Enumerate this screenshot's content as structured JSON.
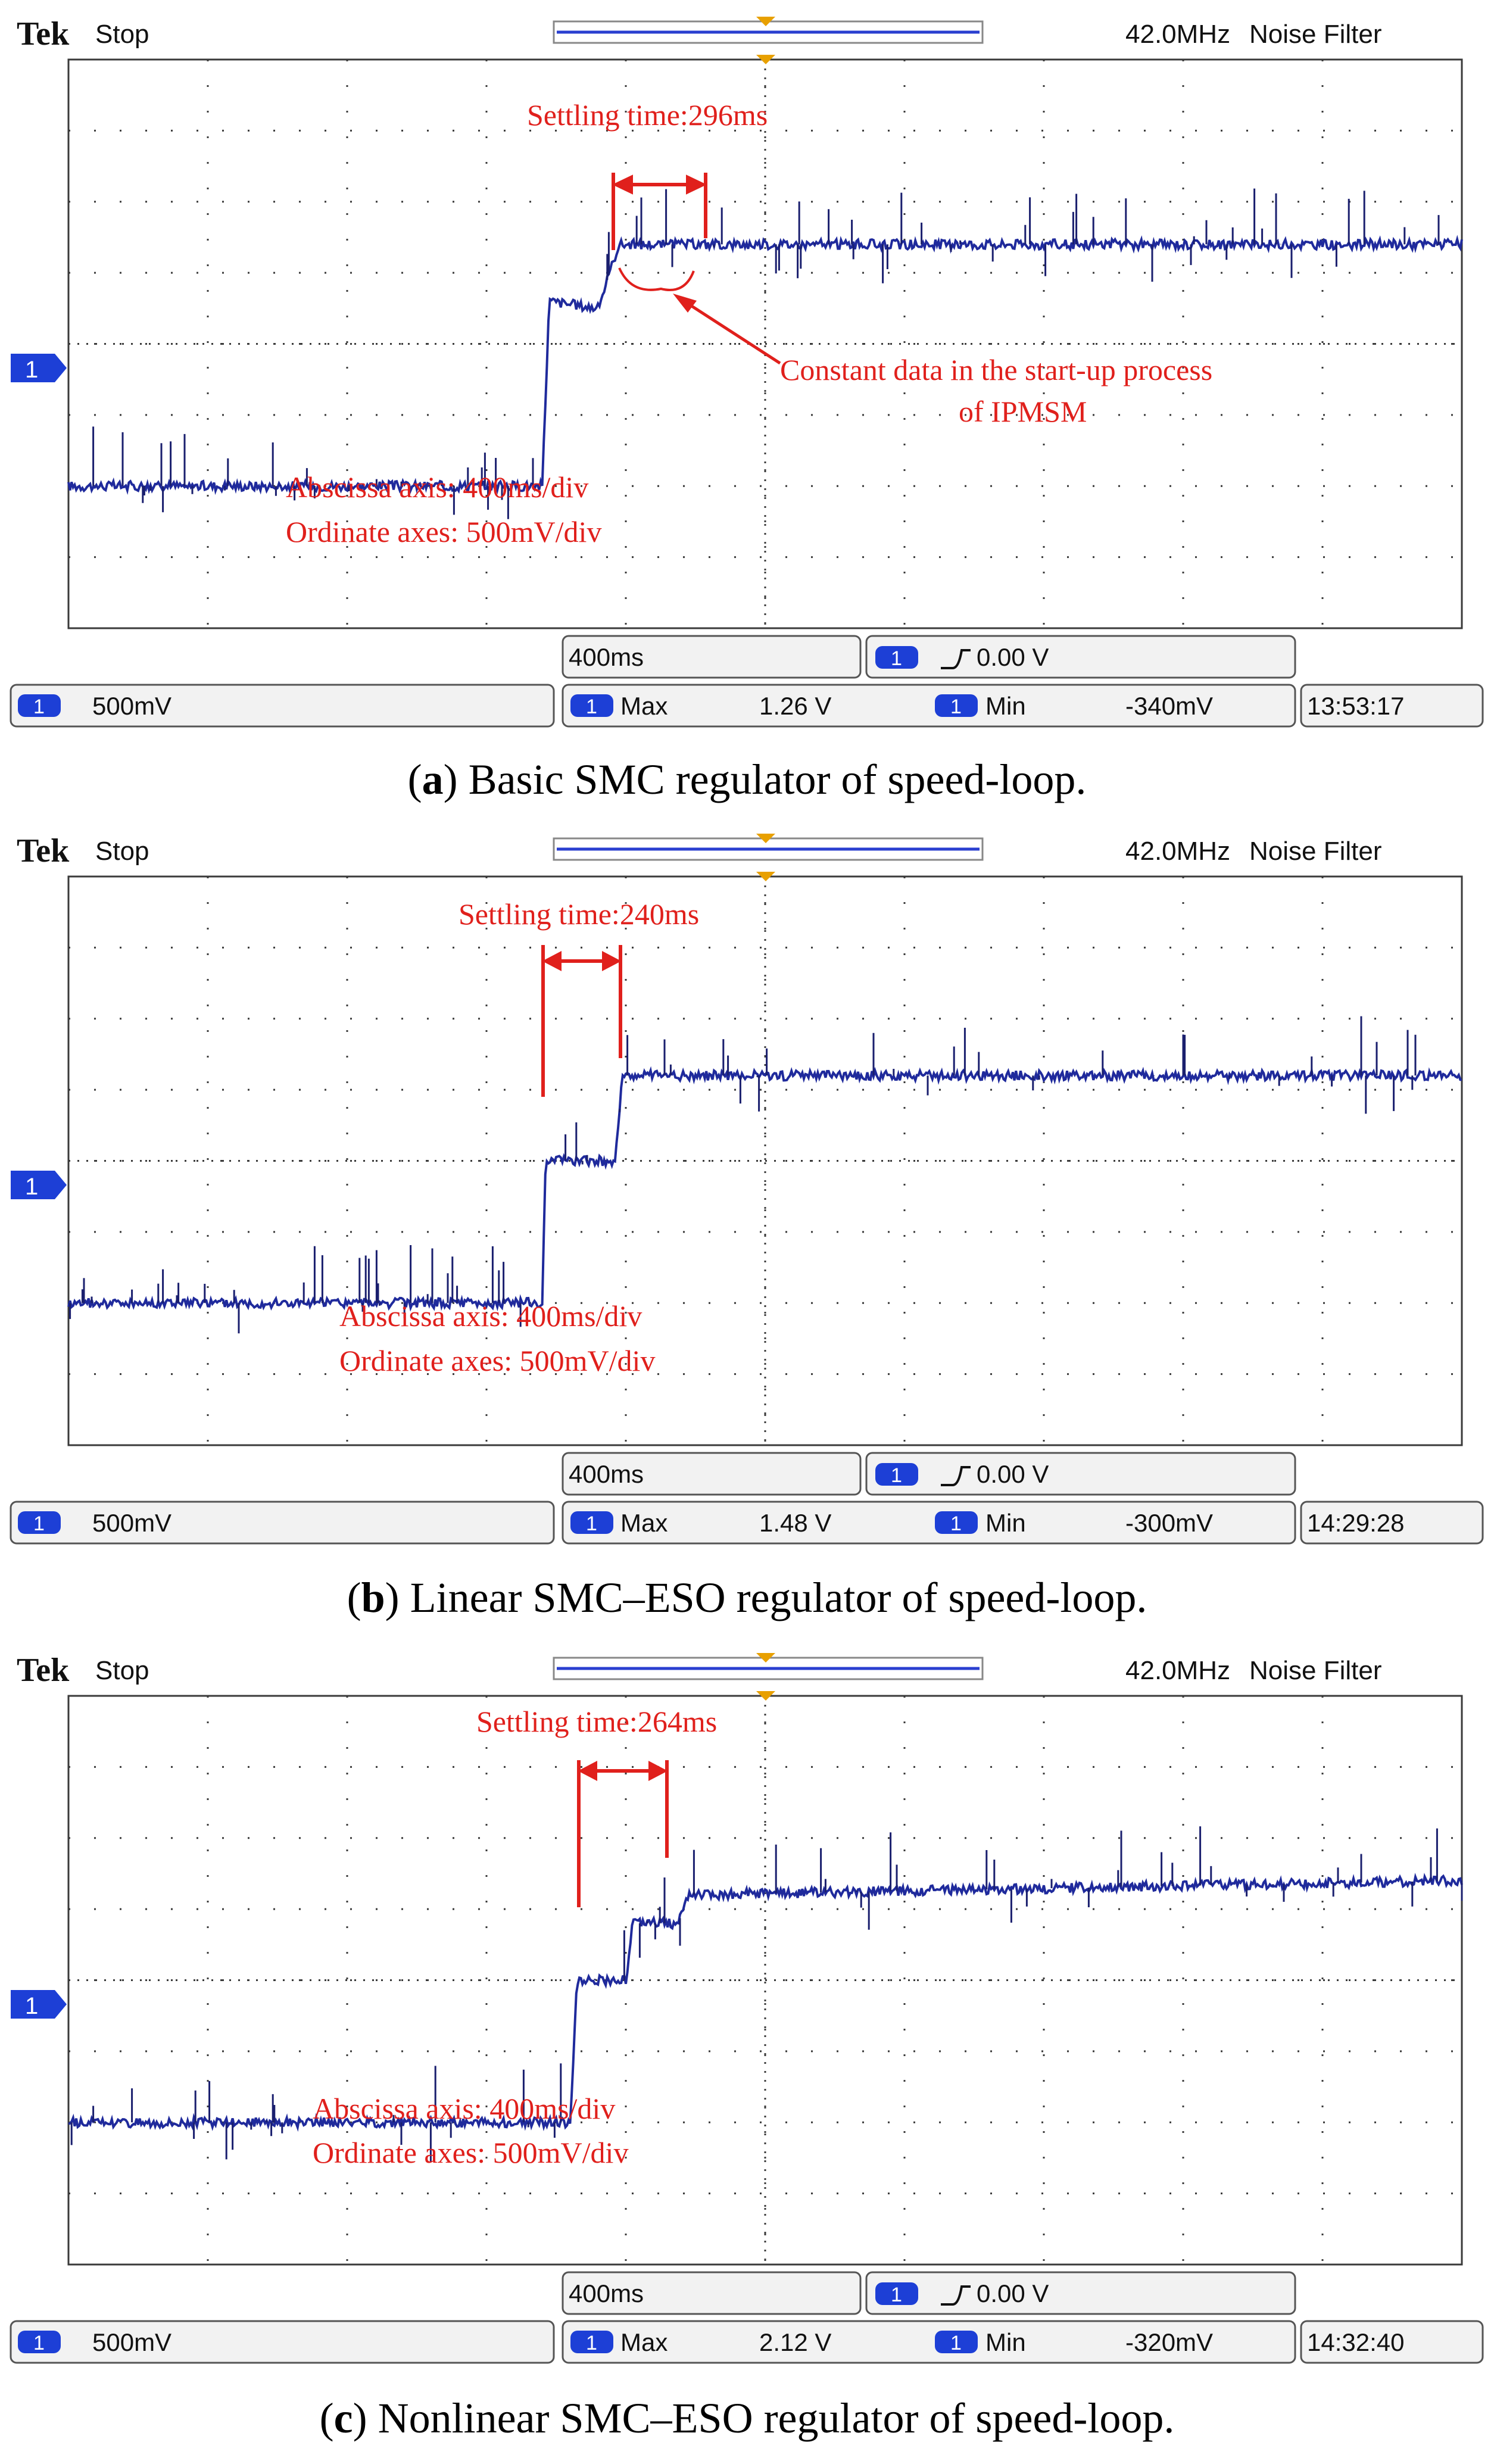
{
  "colors": {
    "trace": "#1f2a9c",
    "annotation": "#e0201c",
    "marker": "#e8a000",
    "badge": "#1d3fd6",
    "grid": "#3a3a3a",
    "text": "#111111"
  },
  "panels": [
    {
      "brand": "Tek",
      "status": "Stop",
      "freq": "42.0MHz",
      "filter": "Noise Filter",
      "channel": "1",
      "timebase": "400ms",
      "trigger": "0.00 V",
      "scale": "500mV",
      "max_label": "Max",
      "max_value": "1.26 V",
      "min_label": "Min",
      "min_value": "-340mV",
      "clock": "13:53:17",
      "settling_label": "Settling time:296ms",
      "axis_note_1": "Abscissa axis: 400ms/div",
      "axis_note_2": "Ordinate axes: 500mV/div",
      "extra_note_1": "Constant data in the start-up process",
      "extra_note_2": "of IPMSM",
      "caption_letter": "a",
      "caption_text": "Basic SMC regulator of speed-loop."
    },
    {
      "brand": "Tek",
      "status": "Stop",
      "freq": "42.0MHz",
      "filter": "Noise Filter",
      "channel": "1",
      "timebase": "400ms",
      "trigger": "0.00 V",
      "scale": "500mV",
      "max_label": "Max",
      "max_value": "1.48 V",
      "min_label": "Min",
      "min_value": "-300mV",
      "clock": "14:29:28",
      "settling_label": "Settling time:240ms",
      "axis_note_1": "Abscissa axis: 400ms/div",
      "axis_note_2": "Ordinate axes: 500mV/div",
      "caption_letter": "b",
      "caption_text": "Linear SMC–ESO regulator of speed-loop."
    },
    {
      "brand": "Tek",
      "status": "Stop",
      "freq": "42.0MHz",
      "filter": "Noise Filter",
      "channel": "1",
      "timebase": "400ms",
      "trigger": "0.00 V",
      "scale": "500mV",
      "max_label": "Max",
      "max_value": "2.12 V",
      "min_label": "Min",
      "min_value": "-320mV",
      "clock": "14:32:40",
      "settling_label": "Settling time:264ms",
      "axis_note_1": "Abscissa axis: 400ms/div",
      "axis_note_2": "Ordinate axes: 500mV/div",
      "caption_letter": "c",
      "caption_text": "Nonlinear SMC–ESO regulator of speed-loop."
    }
  ],
  "chart_data": [
    {
      "type": "line",
      "x_unit": "ms",
      "y_unit": "mV",
      "xlim": [
        0,
        4000
      ],
      "ylim": [
        -1000,
        3000
      ],
      "series": [
        {
          "x": [
            0,
            1360,
            1380,
            1520,
            1580,
            4000
          ],
          "y": [
            0,
            0,
            1300,
            1250,
            1700,
            1700
          ]
        }
      ],
      "settling_ms": 296
    },
    {
      "type": "line",
      "x_unit": "ms",
      "y_unit": "mV",
      "xlim": [
        0,
        4000
      ],
      "ylim": [
        -1000,
        3000
      ],
      "series": [
        {
          "x": [
            0,
            1360,
            1370,
            1570,
            1590,
            4000
          ],
          "y": [
            0,
            0,
            1000,
            1000,
            1600,
            1600
          ]
        }
      ],
      "settling_ms": 240
    },
    {
      "type": "line",
      "x_unit": "ms",
      "y_unit": "mV",
      "xlim": [
        0,
        4000
      ],
      "ylim": [
        -1000,
        3000
      ],
      "series": [
        {
          "x": [
            0,
            1440,
            1460,
            1600,
            1620,
            1750,
            1780,
            4000
          ],
          "y": [
            0,
            0,
            1000,
            1000,
            1400,
            1400,
            1600,
            1700
          ]
        }
      ],
      "settling_ms": 264
    }
  ]
}
